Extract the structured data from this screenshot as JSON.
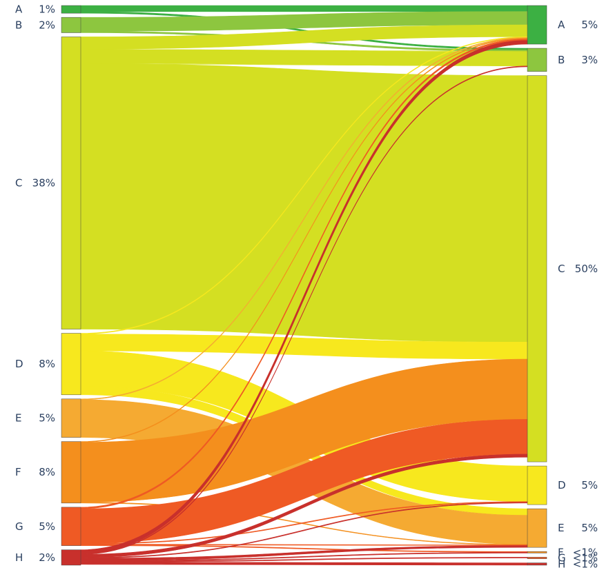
{
  "chart_data": {
    "type": "sankey",
    "left_nodes": [
      {
        "id": "A",
        "label": "A",
        "pct_label": "1%",
        "value": 1,
        "color": "#3cb043"
      },
      {
        "id": "B",
        "label": "B",
        "pct_label": "2%",
        "value": 2,
        "color": "#8dc63f"
      },
      {
        "id": "C",
        "label": "C",
        "pct_label": "38%",
        "value": 38,
        "color": "#d4df22"
      },
      {
        "id": "D",
        "label": "D",
        "pct_label": "8%",
        "value": 8,
        "color": "#f7e81e"
      },
      {
        "id": "E",
        "label": "E",
        "pct_label": "5%",
        "value": 5,
        "color": "#f5aa32"
      },
      {
        "id": "F",
        "label": "F",
        "pct_label": "8%",
        "value": 8,
        "color": "#f48f1d"
      },
      {
        "id": "G",
        "label": "G",
        "pct_label": "5%",
        "value": 5,
        "color": "#ef5a24"
      },
      {
        "id": "H",
        "label": "H",
        "pct_label": "2%",
        "value": 2,
        "color": "#c8302c"
      }
    ],
    "right_nodes": [
      {
        "id": "A",
        "label": "A",
        "pct_label": "5%",
        "value": 5,
        "color": "#3cb043"
      },
      {
        "id": "B",
        "label": "B",
        "pct_label": "3%",
        "value": 3,
        "color": "#8dc63f"
      },
      {
        "id": "C",
        "label": "C",
        "pct_label": "50%",
        "value": 50,
        "color": "#d4df22"
      },
      {
        "id": "D",
        "label": "D",
        "pct_label": "5%",
        "value": 5,
        "color": "#f7e81e"
      },
      {
        "id": "E",
        "label": "E",
        "pct_label": "5%",
        "value": 5,
        "color": "#f5aa32"
      },
      {
        "id": "F",
        "label": "F",
        "pct_label": "<1%",
        "value": 0.2,
        "color": "#f48f1d"
      },
      {
        "id": "G",
        "label": "G",
        "pct_label": "<1%",
        "value": 0.2,
        "color": "#ef5a24"
      },
      {
        "id": "H",
        "label": "H",
        "pct_label": "<1%",
        "value": 0.3,
        "color": "#c8302c"
      }
    ],
    "links": [
      {
        "source": "A",
        "target": "A",
        "value": 0.8
      },
      {
        "source": "A",
        "target": "B",
        "value": 0.2
      },
      {
        "source": "B",
        "target": "A",
        "value": 1.8
      },
      {
        "source": "B",
        "target": "B",
        "value": 0.2
      },
      {
        "source": "C",
        "target": "A",
        "value": 1.6
      },
      {
        "source": "C",
        "target": "B",
        "value": 1.9
      },
      {
        "source": "C",
        "target": "C",
        "value": 34.5
      },
      {
        "source": "D",
        "target": "A",
        "value": 0.1
      },
      {
        "source": "D",
        "target": "C",
        "value": 2.2
      },
      {
        "source": "D",
        "target": "D",
        "value": 4.6
      },
      {
        "source": "D",
        "target": "E",
        "value": 1.1
      },
      {
        "source": "E",
        "target": "A",
        "value": 0.1
      },
      {
        "source": "E",
        "target": "E",
        "value": 4.9
      },
      {
        "source": "F",
        "target": "A",
        "value": 0.1
      },
      {
        "source": "F",
        "target": "C",
        "value": 7.8
      },
      {
        "source": "F",
        "target": "E",
        "value": 0.1
      },
      {
        "source": "G",
        "target": "A",
        "value": 0.2
      },
      {
        "source": "G",
        "target": "C",
        "value": 4.5
      },
      {
        "source": "G",
        "target": "D",
        "value": 0.1
      },
      {
        "source": "G",
        "target": "E",
        "value": 0.1
      },
      {
        "source": "G",
        "target": "F",
        "value": 0.1
      },
      {
        "source": "H",
        "target": "A",
        "value": 0.5
      },
      {
        "source": "H",
        "target": "B",
        "value": 0.1
      },
      {
        "source": "H",
        "target": "C",
        "value": 0.4
      },
      {
        "source": "H",
        "target": "D",
        "value": 0.1
      },
      {
        "source": "H",
        "target": "E",
        "value": 0.3
      },
      {
        "source": "H",
        "target": "F",
        "value": 0.1
      },
      {
        "source": "H",
        "target": "G",
        "value": 0.1
      },
      {
        "source": "H",
        "target": "H",
        "value": 0.3
      }
    ]
  }
}
